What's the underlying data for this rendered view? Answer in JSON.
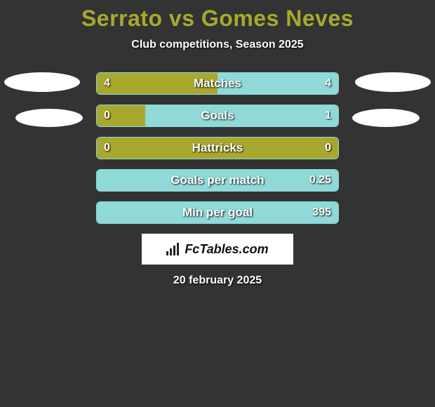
{
  "title": "Serrato vs Gomes Neves",
  "subtitle": "Club competitions, Season 2025",
  "colors": {
    "background": "#333333",
    "title": "#a8a82e",
    "text": "#ffffff",
    "bar_border": "#8fd9d9",
    "fill_left": "#a8a82e",
    "fill_right": "#8fd9d9",
    "logo_bg": "#ffffff",
    "logo_text": "#111111"
  },
  "bars": [
    {
      "label": "Matches",
      "left": "4",
      "right": "4",
      "left_pct": 50,
      "right_pct": 50
    },
    {
      "label": "Goals",
      "left": "0",
      "right": "1",
      "left_pct": 20,
      "right_pct": 80
    },
    {
      "label": "Hattricks",
      "left": "0",
      "right": "0",
      "left_pct": 100,
      "right_pct": 0
    },
    {
      "label": "Goals per match",
      "left": "",
      "right": "0.25",
      "left_pct": 0,
      "right_pct": 100
    },
    {
      "label": "Min per goal",
      "left": "",
      "right": "395",
      "left_pct": 0,
      "right_pct": 100
    }
  ],
  "logo": {
    "text": "FcTables.com"
  },
  "date": "20 february 2025"
}
